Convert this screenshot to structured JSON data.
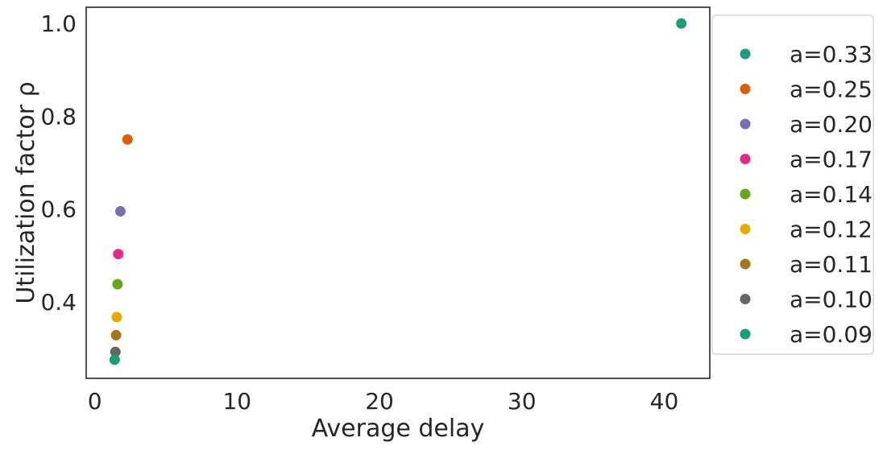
{
  "chart_data": {
    "type": "scatter",
    "title": "",
    "xlabel": "Average delay",
    "ylabel": "Utilization factor ρ",
    "xlim": [
      -0.6,
      43.2
    ],
    "ylim": [
      0.235,
      1.035
    ],
    "xticks": [
      0,
      10,
      20,
      30,
      40
    ],
    "yticks": [
      0.4,
      0.6,
      0.8,
      1.0
    ],
    "xtick_labels": [
      "0",
      "10",
      "20",
      "30",
      "40"
    ],
    "ytick_labels": [
      "0.4",
      "0.6",
      "0.8",
      "1.0"
    ],
    "grid": false,
    "legend_position": "right-outside",
    "series": [
      {
        "name": "a=0.33",
        "color": "#1b9e77",
        "x": [
          41.2
        ],
        "y": [
          1.0
        ]
      },
      {
        "name": "a=0.25",
        "color": "#d95f02",
        "x": [
          2.3
        ],
        "y": [
          0.75
        ]
      },
      {
        "name": "a=0.20",
        "color": "#7570b3",
        "x": [
          1.8
        ],
        "y": [
          0.595
        ]
      },
      {
        "name": "a=0.17",
        "color": "#e7298a",
        "x": [
          1.65
        ],
        "y": [
          0.503
        ]
      },
      {
        "name": "a=0.14",
        "color": "#66a61e",
        "x": [
          1.6
        ],
        "y": [
          0.438
        ]
      },
      {
        "name": "a=0.12",
        "color": "#e6ab02",
        "x": [
          1.55
        ],
        "y": [
          0.367
        ]
      },
      {
        "name": "a=0.11",
        "color": "#a6761d",
        "x": [
          1.5
        ],
        "y": [
          0.328
        ]
      },
      {
        "name": "a=0.10",
        "color": "#666666",
        "x": [
          1.45
        ],
        "y": [
          0.292
        ]
      },
      {
        "name": "a=0.09",
        "color": "#1b9e77",
        "x": [
          1.4
        ],
        "y": [
          0.275
        ]
      }
    ]
  }
}
